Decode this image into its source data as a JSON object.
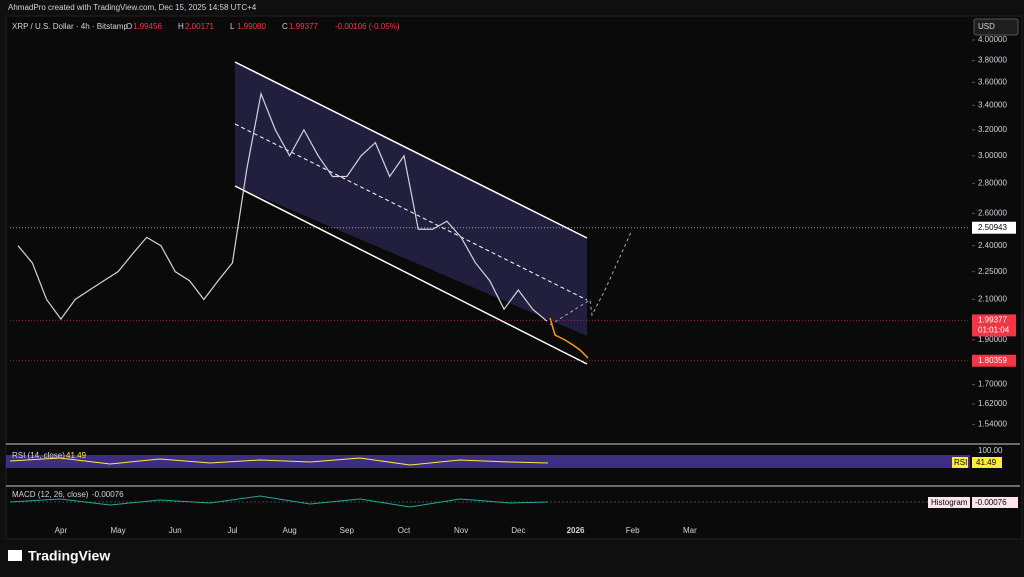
{
  "header": {
    "credit": "AhmadPro created with TradingView.com, Dec 15, 2025 14:58 UTC+4",
    "symbol": "XRP / U.S. Dollar · 4h · Bitstamp",
    "ohlc": [
      {
        "key": "O",
        "value": "1.99456"
      },
      {
        "key": "H",
        "value": "2.00171"
      },
      {
        "key": "L",
        "value": "1.99080"
      },
      {
        "key": "C",
        "value": "1.99377"
      }
    ],
    "change": "-0.00106 (-0.05%)",
    "currency": "USD"
  },
  "chart_data": {
    "type": "line",
    "log_scale": true,
    "categories": [
      null,
      null,
      null,
      "Apr",
      null,
      null,
      null,
      "May",
      null,
      null,
      null,
      "Jun",
      null,
      null,
      null,
      "Jul",
      null,
      null,
      null,
      "Aug",
      null,
      null,
      null,
      "Sep",
      null,
      null,
      null,
      "Oct",
      null,
      null,
      null,
      "Nov",
      null,
      null,
      null,
      "Dec",
      null,
      null,
      null,
      "2026",
      null,
      null,
      null,
      "Feb",
      null,
      null,
      null,
      "Mar"
    ],
    "series": [
      {
        "color": "#d1d4dc",
        "values": [
          2.4,
          2.3,
          2.1,
          2.0,
          2.1,
          2.15,
          2.2,
          2.25,
          2.35,
          2.45,
          2.4,
          2.25,
          2.2,
          2.1,
          2.2,
          2.3,
          2.9,
          3.5,
          3.2,
          3.0,
          3.2,
          3.0,
          2.85,
          2.85,
          3.0,
          3.1,
          2.85,
          3.0,
          2.5,
          2.5,
          2.55,
          2.45,
          2.3,
          2.2,
          2.05,
          2.15,
          2.05,
          1.99,
          null,
          null,
          null,
          null,
          null,
          null,
          null,
          null,
          null,
          null
        ]
      }
    ],
    "ylim": [
      1.5,
      4.1
    ],
    "yticks": [
      {
        "value": 4.0,
        "label": "4.00000"
      },
      {
        "value": 3.8,
        "label": "3.80000"
      },
      {
        "value": 3.6,
        "label": "3.60000"
      },
      {
        "value": 3.4,
        "label": "3.40000"
      },
      {
        "value": 3.2,
        "label": "3.20000"
      },
      {
        "value": 3.0,
        "label": "3.00000"
      },
      {
        "value": 2.8,
        "label": "2.80000"
      },
      {
        "value": 2.6,
        "label": "2.60000"
      },
      {
        "value": 2.4,
        "label": "2.40000"
      },
      {
        "value": 2.25,
        "label": "2.25000"
      },
      {
        "value": 2.1,
        "label": "2.10000"
      },
      {
        "value": 1.9,
        "label": "1.90000"
      },
      {
        "value": 1.7,
        "label": "1.70000"
      },
      {
        "value": 1.62,
        "label": "1.62000"
      },
      {
        "value": 1.54,
        "label": "1.54000"
      }
    ],
    "price_tags": [
      2.50943,
      1.99377,
      1.80359
    ],
    "countdown": "01:01:04"
  },
  "rsi": {
    "title": "RSI (14, close)",
    "value": "41.49",
    "tag": "RSI",
    "level": "100.00"
  },
  "macd": {
    "title": "MACD (12, 26, close)",
    "value": "-0.00076",
    "tag": "Histogram"
  },
  "logo": "TradingView"
}
